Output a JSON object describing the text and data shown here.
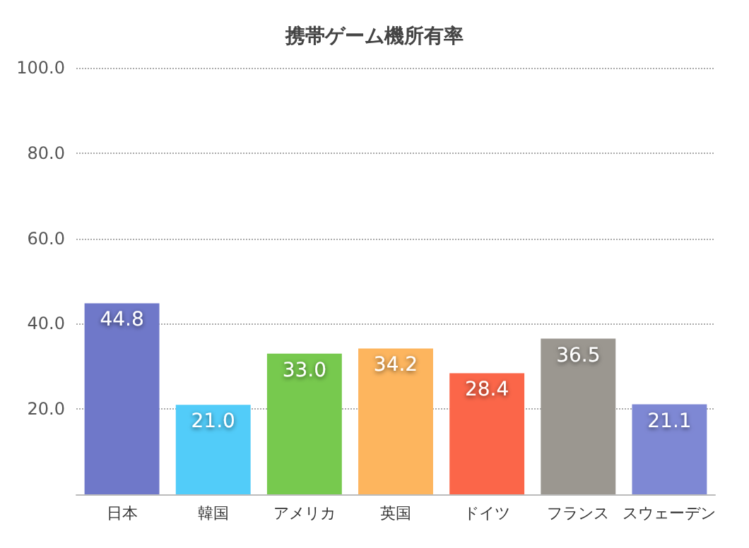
{
  "chart_data": {
    "type": "bar",
    "title": "携帯ゲーム機所有率",
    "categories": [
      "日本",
      "韓国",
      "アメリカ",
      "英国",
      "ドイツ",
      "フランス",
      "スウェーデン"
    ],
    "values": [
      44.8,
      21.0,
      33.0,
      34.2,
      28.4,
      36.5,
      21.1
    ],
    "colors": [
      "#6f78c9",
      "#52ccf9",
      "#77c94e",
      "#fdb55e",
      "#fb6649",
      "#9b9790",
      "#7e88d4"
    ],
    "value_labels": [
      "44.8",
      "21.0",
      "33.0",
      "34.2",
      "28.4",
      "36.5",
      "21.1"
    ],
    "ylim": [
      0,
      100
    ],
    "yticks": [
      {
        "value": 20,
        "label": "20.0"
      },
      {
        "value": 40,
        "label": "40.0"
      },
      {
        "value": 60,
        "label": "60.0"
      },
      {
        "value": 80,
        "label": "80.0"
      },
      {
        "value": 100,
        "label": "100.0"
      }
    ],
    "grid": "y"
  }
}
